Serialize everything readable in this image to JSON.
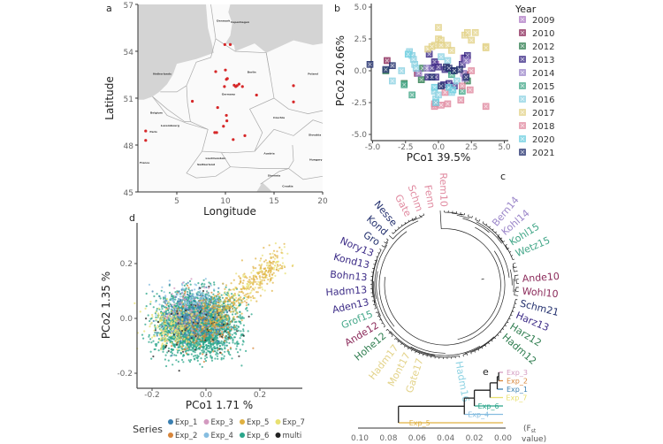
{
  "chart_data": [
    {
      "panel": "a",
      "type": "scatter",
      "xlabel": "Longitude",
      "ylabel": "Latitude",
      "xlim": [
        1,
        20
      ],
      "ylim": [
        45,
        57
      ],
      "xticks": [
        "5",
        "10",
        "15",
        "20"
      ],
      "yticks": [
        "45",
        "48",
        "51",
        "54",
        "57"
      ],
      "point_color": "#d62728",
      "basemap_labels": [
        "Denmark",
        "Copenhagen",
        "Netherlands",
        "Belgium",
        "Luxembourg",
        "Germany",
        "Berlin",
        "Poland",
        "Czechia",
        "Slovakia",
        "Austria",
        "Liechtenstein",
        "Switzerland",
        "France",
        "Paris",
        "Slovenia",
        "Croatia",
        "Hungary"
      ],
      "points": [
        [
          9.94,
          54.43
        ],
        [
          10.5,
          54.43
        ],
        [
          9.0,
          52.7
        ],
        [
          10.0,
          52.8
        ],
        [
          10.1,
          52.2
        ],
        [
          10.2,
          52.25
        ],
        [
          9.9,
          51.74
        ],
        [
          10.9,
          51.83
        ],
        [
          11.4,
          51.9
        ],
        [
          11.75,
          51.74
        ],
        [
          11.06,
          51.74
        ],
        [
          11.2,
          51.8
        ],
        [
          13.2,
          51.2
        ],
        [
          17.0,
          51.8
        ],
        [
          17.0,
          50.76
        ],
        [
          6.6,
          50.8
        ],
        [
          9.2,
          50.4
        ],
        [
          10.1,
          49.9
        ],
        [
          10.15,
          49.55
        ],
        [
          9.8,
          49.2
        ],
        [
          8.9,
          48.8
        ],
        [
          9.1,
          48.8
        ],
        [
          10.8,
          48.35
        ],
        [
          12.0,
          48.6
        ],
        [
          1.8,
          48.9
        ],
        [
          1.8,
          48.3
        ]
      ]
    },
    {
      "panel": "b",
      "type": "scatter",
      "xlabel": "PCo1 39.5%",
      "ylabel": "PCo2 20.66%",
      "xlim": [
        -5.5,
        5.5
      ],
      "ylim": [
        -5.5,
        5.5
      ],
      "xticks": [
        "-5.0",
        "-2.5",
        "0.0",
        "2.5",
        "5.0"
      ],
      "yticks": [
        "-5.0",
        "-2.5",
        "0.0",
        "2.5",
        "5.0"
      ],
      "legend_title": "Year",
      "legend_position": "right",
      "series": [
        {
          "name": "2009",
          "color": "#b07cc6",
          "points": [
            [
              2.2,
              0.9
            ],
            [
              -0.2,
              0.5
            ],
            [
              1.9,
              1.0
            ]
          ]
        },
        {
          "name": "2010",
          "color": "#8b2a5a",
          "points": [
            [
              -3.9,
              0.8
            ],
            [
              -1.6,
              -0.2
            ],
            [
              2.0,
              -0.3
            ]
          ]
        },
        {
          "name": "2012",
          "color": "#2e7d4f",
          "points": [
            [
              -4.0,
              0.0
            ],
            [
              -1.2,
              0.2
            ],
            [
              -1.3,
              -0.7
            ],
            [
              2.2,
              -0.8
            ],
            [
              1.1,
              0.0
            ],
            [
              -2.6,
              -1.0
            ]
          ]
        },
        {
          "name": "2013",
          "color": "#3b2a86",
          "points": [
            [
              -0.7,
              1.3
            ],
            [
              -0.3,
              0.7
            ],
            [
              -0.5,
              0.2
            ],
            [
              0.0,
              0.3
            ],
            [
              0.5,
              0.1
            ],
            [
              1.0,
              0.0
            ],
            [
              2.0,
              1.0
            ],
            [
              2.2,
              1.2
            ],
            [
              1.8,
              0.5
            ],
            [
              -0.8,
              -0.5
            ],
            [
              -0.2,
              -0.5
            ],
            [
              0.8,
              -1.0
            ],
            [
              0.4,
              -1.1
            ],
            [
              1.2,
              -1.2
            ]
          ]
        },
        {
          "name": "2014",
          "color": "#9b86c9",
          "points": [
            [
              -1.5,
              -0.2
            ],
            [
              1.9,
              -0.2
            ],
            [
              2.0,
              -0.6
            ],
            [
              2.1,
              0.8
            ],
            [
              -0.9,
              0.2
            ]
          ]
        },
        {
          "name": "2015",
          "color": "#45a88a",
          "points": [
            [
              -2.0,
              -1.9
            ],
            [
              -2.6,
              -1.1
            ],
            [
              1.8,
              -1.6
            ],
            [
              1.0,
              -0.3
            ]
          ]
        },
        {
          "name": "2016",
          "color": "#8fd3e3",
          "points": [
            [
              -2.2,
              1.5
            ],
            [
              -2.0,
              1.2
            ],
            [
              -1.9,
              0.9
            ],
            [
              -1.8,
              0.5
            ],
            [
              -1.7,
              0.2
            ],
            [
              -2.8,
              0.0
            ],
            [
              -3.5,
              -0.8
            ],
            [
              0.2,
              1.1
            ],
            [
              0.7,
              0.8
            ],
            [
              -0.3,
              -1.6
            ],
            [
              -0.2,
              -2.2
            ],
            [
              0.0,
              -1.9
            ],
            [
              1.4,
              -0.8
            ],
            [
              1.0,
              -1.7
            ]
          ]
        },
        {
          "name": "2017",
          "color": "#e3d38a",
          "points": [
            [
              0.0,
              3.4
            ],
            [
              0.0,
              2.5
            ],
            [
              0.2,
              2.4
            ],
            [
              -0.3,
              2.0
            ],
            [
              0.2,
              2.0
            ],
            [
              -0.8,
              1.7
            ],
            [
              -0.5,
              1.9
            ],
            [
              0.7,
              2.0
            ],
            [
              1.0,
              1.6
            ],
            [
              2.0,
              2.8
            ],
            [
              2.2,
              3.0
            ],
            [
              2.8,
              3.0
            ],
            [
              2.5,
              2.4
            ],
            [
              3.6,
              1.9
            ],
            [
              3.6,
              1.8
            ]
          ]
        },
        {
          "name": "2018",
          "color": "#e08aa0",
          "points": [
            [
              2.5,
              0.0
            ],
            [
              2.4,
              -1.5
            ],
            [
              1.8,
              -1.2
            ],
            [
              0.5,
              -1.7
            ],
            [
              0.7,
              -2.6
            ],
            [
              0.2,
              -2.7
            ],
            [
              -0.3,
              -2.8
            ],
            [
              -0.3,
              -2.6
            ],
            [
              1.7,
              -2.3
            ],
            [
              3.6,
              -2.8
            ]
          ]
        },
        {
          "name": "2020",
          "color": "#6ecfe0",
          "points": [
            [
              -2.3,
              1.3
            ],
            [
              -0.3,
              -1.3
            ],
            [
              -0.2,
              -2.5
            ],
            [
              0.8,
              -1.3
            ],
            [
              1.1,
              -1.5
            ]
          ]
        },
        {
          "name": "2021",
          "color": "#23306e",
          "points": [
            [
              -5.2,
              0.5
            ],
            [
              -3.5,
              0.4
            ],
            [
              -4.0,
              0.1
            ],
            [
              0.6,
              0.3
            ],
            [
              0.8,
              0.2
            ],
            [
              1.2,
              0.0
            ],
            [
              1.6,
              0.1
            ],
            [
              -0.5,
              -0.5
            ],
            [
              2.1,
              -0.5
            ],
            [
              0.2,
              -1.2
            ]
          ]
        }
      ]
    },
    {
      "panel": "c",
      "type": "circular-dendrogram",
      "leaf_labels": [
        {
          "label": "Gate",
          "color": "#e08aa0"
        },
        {
          "label": "Schm",
          "color": "#e08aa0"
        },
        {
          "label": "Fenn",
          "color": "#e08aa0"
        },
        {
          "label": "Rem10",
          "color": "#e08aa0"
        },
        {
          "label": "Bern14",
          "color": "#9b86c9"
        },
        {
          "label": "Kohl14",
          "color": "#9b86c9"
        },
        {
          "label": "Kohl15",
          "color": "#45a88a"
        },
        {
          "label": "Wetz15",
          "color": "#45a88a"
        },
        {
          "label": "Ande10",
          "color": "#8b2a5a"
        },
        {
          "label": "Wohl10",
          "color": "#8b2a5a"
        },
        {
          "label": "Schm21",
          "color": "#23306e"
        },
        {
          "label": "Harz13",
          "color": "#3b2a86"
        },
        {
          "label": "Harz12",
          "color": "#2e7d4f"
        },
        {
          "label": "Hadm12",
          "color": "#2e7d4f"
        },
        {
          "label": "Hadm16",
          "color": "#8fd3e3"
        },
        {
          "label": "Gate17",
          "color": "#e3d38a"
        },
        {
          "label": "Mont17",
          "color": "#e3d38a"
        },
        {
          "label": "Hadm17",
          "color": "#e3d38a"
        },
        {
          "label": "Hohe12",
          "color": "#2e7d4f"
        },
        {
          "label": "Ande12",
          "color": "#8b2a5a"
        },
        {
          "label": "Grof15",
          "color": "#45a88a"
        },
        {
          "label": "Aden13",
          "color": "#3b2a86"
        },
        {
          "label": "Hadm13",
          "color": "#3b2a86"
        },
        {
          "label": "Bohn13",
          "color": "#3b2a86"
        },
        {
          "label": "Kond13",
          "color": "#3b2a86"
        },
        {
          "label": "Nory13",
          "color": "#3b2a86"
        },
        {
          "label": "Gro",
          "color": "#23306e"
        },
        {
          "label": "Kond",
          "color": "#23306e"
        },
        {
          "label": "Nesse",
          "color": "#23306e"
        }
      ]
    },
    {
      "panel": "d",
      "type": "scatter",
      "xlabel": "PCo1 1.71 %",
      "ylabel": "PCo2 1.35 %",
      "xlim": [
        -0.25,
        0.35
      ],
      "ylim": [
        -0.25,
        0.32
      ],
      "xticks": [
        "-0.2",
        "0.0",
        "0.2"
      ],
      "yticks": [
        "-0.2",
        "0.0",
        "0.2"
      ],
      "legend_title": "Series",
      "legend_position": "bottom",
      "series": [
        {
          "name": "Exp_1",
          "color": "#3a7fb0"
        },
        {
          "name": "Exp_2",
          "color": "#d7853a"
        },
        {
          "name": "Exp_3",
          "color": "#d39ac0"
        },
        {
          "name": "Exp_4",
          "color": "#86bde0"
        },
        {
          "name": "Exp_5",
          "color": "#e0b040"
        },
        {
          "name": "Exp_6",
          "color": "#2aa58a"
        },
        {
          "name": "Exp_7",
          "color": "#e8e070"
        },
        {
          "name": "multi",
          "color": "#222222"
        }
      ]
    },
    {
      "panel": "e",
      "type": "dendrogram",
      "xlabel": "(Fst value)",
      "xlabel_parts": [
        "(F",
        "st",
        "value)"
      ],
      "xlim": [
        0.1,
        0.0
      ],
      "xticks": [
        "0.10",
        "0.08",
        "0.06",
        "0.04",
        "0.02",
        "0.00"
      ],
      "leaves": [
        {
          "label": "Exp_3",
          "color": "#d39ac0"
        },
        {
          "label": "Exp_2",
          "color": "#d7853a"
        },
        {
          "label": "Exp_1",
          "color": "#3a7fb0"
        },
        {
          "label": "Exp_7",
          "color": "#e8e070"
        },
        {
          "label": "Exp_6",
          "color": "#2aa58a"
        },
        {
          "label": "Exp_4",
          "color": "#86bde0"
        },
        {
          "label": "Exp_5",
          "color": "#e0b040"
        }
      ],
      "merges": [
        {
          "join": [
            "Exp_3",
            "Exp_2"
          ],
          "height": 0.003
        },
        {
          "join": [
            "Exp_3+Exp_2",
            "Exp_1"
          ],
          "height": 0.004
        },
        {
          "join": [
            "...",
            "Exp_7"
          ],
          "height": 0.009
        },
        {
          "join": [
            "...",
            "Exp_6"
          ],
          "height": 0.02
        },
        {
          "join": [
            "...",
            "Exp_4"
          ],
          "height": 0.027
        },
        {
          "join": [
            "...",
            "Exp_5"
          ],
          "height": 0.073
        }
      ]
    }
  ],
  "panel_labels": [
    "a",
    "b",
    "c",
    "d",
    "e"
  ]
}
